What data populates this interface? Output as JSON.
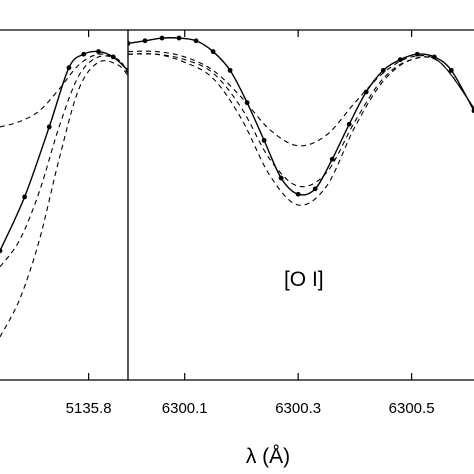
{
  "chart_data": [
    {
      "type": "line",
      "panel": "left",
      "xlim": [
        5135.62,
        5135.88
      ],
      "ylim": [
        0.38,
        1.03
      ],
      "x_ticks": [
        5135.8
      ],
      "x_tick_labels": [
        "5135.8"
      ],
      "xlabel": "",
      "annotation": "",
      "series": [
        {
          "style": "solid-dots",
          "x": [
            5135.62,
            5135.67,
            5135.72,
            5135.76,
            5135.79,
            5135.82,
            5135.85,
            5135.88
          ],
          "y": [
            0.62,
            0.72,
            0.85,
            0.96,
            0.985,
            0.99,
            0.98,
            0.955
          ]
        },
        {
          "style": "dashed",
          "x": [
            5135.62,
            5135.66,
            5135.7,
            5135.74,
            5135.78,
            5135.82,
            5135.86,
            5135.88
          ],
          "y": [
            0.85,
            0.86,
            0.88,
            0.92,
            0.965,
            0.985,
            0.975,
            0.95
          ]
        },
        {
          "style": "dashed",
          "x": [
            5135.62,
            5135.66,
            5135.7,
            5135.74,
            5135.78,
            5135.82,
            5135.86,
            5135.88
          ],
          "y": [
            0.59,
            0.64,
            0.73,
            0.85,
            0.945,
            0.98,
            0.975,
            0.95
          ]
        },
        {
          "style": "dashed",
          "x": [
            5135.62,
            5135.66,
            5135.7,
            5135.74,
            5135.78,
            5135.82,
            5135.86,
            5135.88
          ],
          "y": [
            0.46,
            0.53,
            0.64,
            0.79,
            0.92,
            0.97,
            0.965,
            0.945
          ]
        }
      ]
    },
    {
      "type": "line",
      "panel": "right",
      "xlim": [
        6300.0,
        6300.61
      ],
      "ylim": [
        0.38,
        1.03
      ],
      "x_ticks": [
        6300.1,
        6300.3,
        6300.5
      ],
      "x_tick_labels": [
        "6300.1",
        "6300.3",
        "6300.5"
      ],
      "xlabel": "λ (Å)",
      "annotation": "[O I]",
      "annotation_at": {
        "x": 6300.31,
        "y": 0.555
      },
      "series": [
        {
          "style": "solid-dots",
          "x": [
            6300.0,
            6300.03,
            6300.06,
            6300.09,
            6300.12,
            6300.15,
            6300.18,
            6300.21,
            6300.24,
            6300.27,
            6300.3,
            6300.33,
            6300.36,
            6300.39,
            6300.42,
            6300.45,
            6300.48,
            6300.51,
            6300.54,
            6300.57,
            6300.61
          ],
          "y": [
            1.005,
            1.01,
            1.015,
            1.015,
            1.01,
            0.99,
            0.955,
            0.895,
            0.825,
            0.755,
            0.725,
            0.735,
            0.79,
            0.855,
            0.915,
            0.955,
            0.975,
            0.985,
            0.98,
            0.955,
            0.88
          ]
        },
        {
          "style": "dashed",
          "x": [
            6300.0,
            6300.05,
            6300.1,
            6300.15,
            6300.2,
            6300.25,
            6300.3,
            6300.35,
            6300.4,
            6300.45,
            6300.5,
            6300.55,
            6300.61
          ],
          "y": [
            0.99,
            0.99,
            0.98,
            0.955,
            0.905,
            0.845,
            0.815,
            0.835,
            0.895,
            0.95,
            0.98,
            0.97,
            0.885
          ]
        },
        {
          "style": "dashed",
          "x": [
            6300.0,
            6300.05,
            6300.1,
            6300.15,
            6300.2,
            6300.25,
            6300.3,
            6300.35,
            6300.4,
            6300.45,
            6300.5,
            6300.55,
            6300.61
          ],
          "y": [
            0.985,
            0.985,
            0.975,
            0.95,
            0.885,
            0.79,
            0.74,
            0.765,
            0.86,
            0.94,
            0.975,
            0.97,
            0.885
          ]
        },
        {
          "style": "dashed",
          "x": [
            6300.0,
            6300.05,
            6300.1,
            6300.15,
            6300.2,
            6300.25,
            6300.3,
            6300.35,
            6300.4,
            6300.45,
            6300.5,
            6300.55,
            6300.61
          ],
          "y": [
            0.985,
            0.985,
            0.97,
            0.94,
            0.865,
            0.76,
            0.705,
            0.74,
            0.85,
            0.935,
            0.975,
            0.97,
            0.885
          ]
        }
      ]
    }
  ]
}
